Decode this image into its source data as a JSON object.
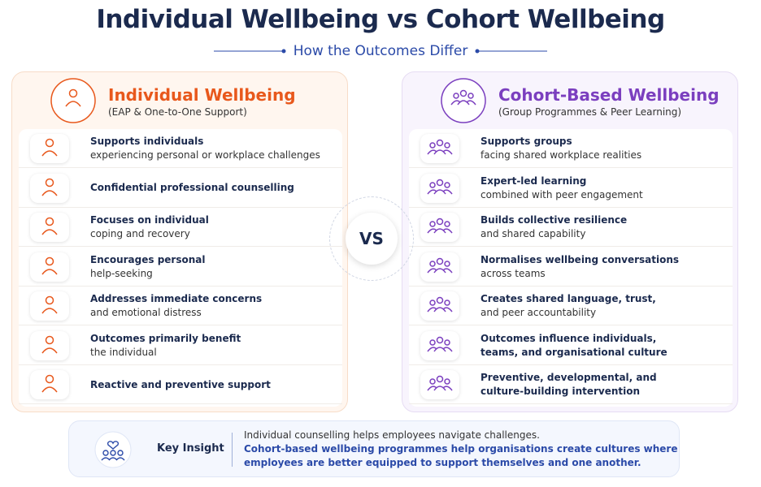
{
  "header": {
    "title": "Individual Wellbeing vs Cohort Wellbeing",
    "subtitle": "How the Outcomes Differ"
  },
  "panels": [
    {
      "title": "Individual Wellbeing",
      "subtitle": "(EAP & One-to-One Support)",
      "color": "#e8581c",
      "items": [
        {
          "heading": [
            "Supports individuals"
          ],
          "detail": [
            "experiencing personal or workplace challenges"
          ]
        },
        {
          "heading": [
            "Confidential professional counselling"
          ]
        },
        {
          "heading": [
            "Focuses on individual"
          ],
          "detail": [
            "coping and recovery"
          ]
        },
        {
          "heading": [
            "Encourages personal"
          ],
          "detail": [
            "help-seeking"
          ]
        },
        {
          "heading": [
            "Addresses immediate concerns"
          ],
          "detail": [
            "and emotional distress"
          ]
        },
        {
          "heading": [
            "Outcomes primarily benefit"
          ],
          "detail": [
            "the individual"
          ]
        },
        {
          "heading": [
            "Reactive and preventive support"
          ]
        }
      ]
    },
    {
      "title": "Cohort-Based Wellbeing",
      "subtitle": "(Group Programmes & Peer Learning)",
      "color": "#7b3fbf",
      "items": [
        {
          "heading": [
            "Supports groups"
          ],
          "detail": [
            "facing shared workplace realities"
          ]
        },
        {
          "heading": [
            "Expert-led learning"
          ],
          "detail": [
            "combined with peer engagement"
          ]
        },
        {
          "heading": [
            "Builds collective resilience"
          ],
          "detail": [
            "and shared capability"
          ]
        },
        {
          "heading": [
            "Normalises wellbeing conversations"
          ],
          "detail": [
            "across teams"
          ]
        },
        {
          "heading": [
            "Creates shared language, trust,"
          ],
          "detail": [
            "and peer accountability"
          ]
        },
        {
          "heading": [
            "Outcomes influence individuals,",
            "teams, and organisational culture"
          ]
        },
        {
          "heading": [
            "Preventive, developmental, and",
            "culture-building intervention"
          ]
        }
      ]
    }
  ],
  "vs": "VS",
  "insight": {
    "label": "Key Insight",
    "text": "Individual counselling helps employees navigate challenges.",
    "highlight": [
      "Cohort-based wellbeing programmes help organisations create cultures where",
      "employees are better equipped to support themselves and one another."
    ]
  }
}
